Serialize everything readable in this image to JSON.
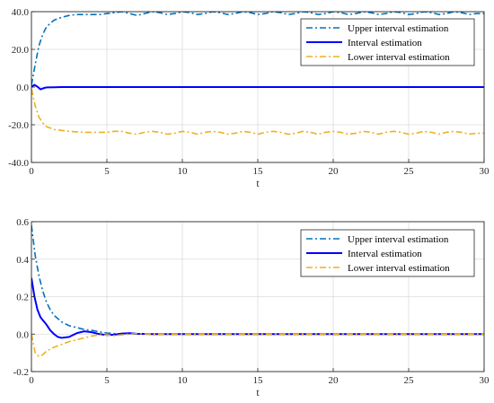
{
  "colors": {
    "upper": "#0072BD",
    "interval": "#0000FF",
    "lower": "#EDB120",
    "axes": "#262626",
    "grid": "#dcdcdc"
  },
  "chart_data": [
    {
      "type": "line",
      "xlabel": "t",
      "ylabel": "",
      "xlim": [
        0,
        30
      ],
      "ylim": [
        -40,
        40
      ],
      "xticks": [
        0,
        5,
        10,
        15,
        20,
        25,
        30
      ],
      "xtick_labels": [
        "0",
        "5",
        "10",
        "15",
        "20",
        "25",
        "30"
      ],
      "yticks": [
        -40,
        -20,
        0,
        20,
        40
      ],
      "ytick_labels": [
        "-40.0",
        "-20.0",
        "0.0",
        "20.0",
        "40.0"
      ],
      "grid": true,
      "legend_position": "top-right",
      "series": [
        {
          "name": "Upper interval estimation",
          "style": "dash-dot",
          "color_key": "upper",
          "x": [
            0,
            0.25,
            0.5,
            0.75,
            1,
            1.5,
            2,
            2.5,
            3,
            3.5,
            4,
            4.5,
            5,
            5.5,
            6,
            6.5,
            7,
            7.5,
            8,
            8.5,
            9,
            9.5,
            10,
            10.5,
            11,
            11.5,
            12,
            12.5,
            13,
            13.5,
            14,
            14.5,
            15,
            15.5,
            16,
            16.5,
            17,
            17.5,
            18,
            18.5,
            19,
            19.5,
            20,
            20.5,
            21,
            21.5,
            22,
            22.5,
            23,
            23.5,
            24,
            24.5,
            25,
            25.5,
            26,
            26.5,
            27,
            27.5,
            28,
            28.5,
            29,
            29.5,
            30
          ],
          "y": [
            1,
            12,
            22,
            28,
            32,
            35.5,
            37,
            38,
            38.5,
            38.5,
            38.5,
            38.5,
            39,
            39.5,
            40,
            39,
            38,
            39,
            40,
            39.5,
            38.5,
            39,
            40,
            39.5,
            38.5,
            39,
            40,
            39.5,
            38.5,
            39,
            40,
            39.5,
            38.5,
            39,
            40,
            39.5,
            38.5,
            39,
            40,
            39.5,
            38.5,
            39,
            40,
            39.5,
            38.5,
            39,
            40,
            39.5,
            38.5,
            39,
            40,
            39.5,
            38.5,
            39,
            40,
            39.5,
            38.5,
            39,
            40,
            39.5,
            38.5,
            39,
            39
          ]
        },
        {
          "name": "Interval estimation",
          "style": "solid",
          "color_key": "interval",
          "x": [
            0,
            0.2,
            0.4,
            0.6,
            0.8,
            1,
            1.5,
            2,
            3,
            5,
            10,
            15,
            20,
            25,
            30
          ],
          "y": [
            0,
            1.2,
            0.2,
            -1.2,
            -0.6,
            -0.2,
            -0.1,
            0,
            0,
            0,
            0,
            0,
            0,
            0,
            0
          ]
        },
        {
          "name": "Lower interval estimation",
          "style": "dash-dot",
          "color_key": "lower",
          "x": [
            0,
            0.25,
            0.5,
            0.75,
            1,
            1.5,
            2,
            2.5,
            3,
            3.5,
            4,
            4.5,
            5,
            5.5,
            6,
            6.5,
            7,
            7.5,
            8,
            8.5,
            9,
            9.5,
            10,
            10.5,
            11,
            11.5,
            12,
            12.5,
            13,
            13.5,
            14,
            14.5,
            15,
            15.5,
            16,
            16.5,
            17,
            17.5,
            18,
            18.5,
            19,
            19.5,
            20,
            20.5,
            21,
            21.5,
            22,
            22.5,
            23,
            23.5,
            24,
            24.5,
            25,
            25.5,
            26,
            26.5,
            27,
            27.5,
            28,
            28.5,
            29,
            29.5,
            30
          ],
          "y": [
            -1,
            -10,
            -16,
            -19,
            -21,
            -22.5,
            -23,
            -23.5,
            -23.8,
            -24,
            -24,
            -24,
            -24,
            -23.5,
            -23.5,
            -24.5,
            -25,
            -24,
            -23.5,
            -24,
            -25,
            -24.5,
            -23.5,
            -24,
            -25,
            -24,
            -23.5,
            -24,
            -25,
            -24.5,
            -23.5,
            -24,
            -25,
            -24,
            -23.5,
            -24,
            -25,
            -24.5,
            -23.5,
            -24,
            -25,
            -24,
            -23.5,
            -24,
            -25,
            -24.5,
            -23.5,
            -24,
            -25,
            -24,
            -23.5,
            -24,
            -25,
            -24.5,
            -23.5,
            -24,
            -25,
            -24,
            -23.5,
            -24,
            -25,
            -24.5,
            -24.5
          ]
        }
      ]
    },
    {
      "type": "line",
      "xlabel": "t",
      "ylabel": "",
      "xlim": [
        0,
        30
      ],
      "ylim": [
        -0.2,
        0.6
      ],
      "xticks": [
        0,
        5,
        10,
        15,
        20,
        25,
        30
      ],
      "xtick_labels": [
        "0",
        "5",
        "10",
        "15",
        "20",
        "25",
        "30"
      ],
      "yticks": [
        -0.2,
        0,
        0.2,
        0.4,
        0.6
      ],
      "ytick_labels": [
        "-0.2",
        "0.0",
        "0.2",
        "0.4",
        "0.6"
      ],
      "grid": true,
      "legend_position": "top-right",
      "series": [
        {
          "name": "Upper interval estimation",
          "style": "dash-dot",
          "color_key": "upper",
          "x": [
            0,
            0.25,
            0.5,
            0.75,
            1,
            1.25,
            1.5,
            2,
            2.5,
            3,
            3.5,
            4,
            4.5,
            5,
            5.5,
            6,
            7,
            8,
            10,
            15,
            20,
            25,
            30
          ],
          "y": [
            0.58,
            0.42,
            0.31,
            0.23,
            0.17,
            0.13,
            0.1,
            0.065,
            0.045,
            0.035,
            0.025,
            0.02,
            0.012,
            0.006,
            0.003,
            0.001,
            0,
            0,
            0,
            0,
            0,
            0,
            0
          ]
        },
        {
          "name": "Interval estimation",
          "style": "solid",
          "color_key": "interval",
          "x": [
            0,
            0.2,
            0.4,
            0.6,
            0.8,
            1,
            1.25,
            1.5,
            1.75,
            2,
            2.5,
            3,
            3.5,
            4,
            4.5,
            5,
            5.5,
            6,
            6.5,
            7,
            8,
            10,
            15,
            20,
            25,
            30
          ],
          "y": [
            0.3,
            0.2,
            0.13,
            0.09,
            0.07,
            0.05,
            0.02,
            0,
            -0.015,
            -0.02,
            -0.015,
            0.005,
            0.015,
            0.01,
            0,
            -0.005,
            -0.003,
            0.003,
            0.005,
            0.002,
            0,
            0,
            0,
            0,
            0,
            0
          ]
        },
        {
          "name": "Lower interval estimation",
          "style": "dash-dot",
          "color_key": "lower",
          "x": [
            0,
            0.25,
            0.5,
            0.75,
            1,
            1.5,
            2,
            2.5,
            3,
            3.5,
            4,
            4.5,
            5,
            5.5,
            6,
            6.5,
            7,
            8,
            10,
            15,
            20,
            25,
            30
          ],
          "y": [
            0,
            -0.1,
            -0.12,
            -0.11,
            -0.09,
            -0.07,
            -0.055,
            -0.04,
            -0.03,
            -0.02,
            -0.01,
            -0.005,
            -0.005,
            -0.008,
            -0.004,
            0,
            0.003,
            0,
            0,
            0,
            0,
            0,
            0
          ]
        }
      ]
    }
  ]
}
